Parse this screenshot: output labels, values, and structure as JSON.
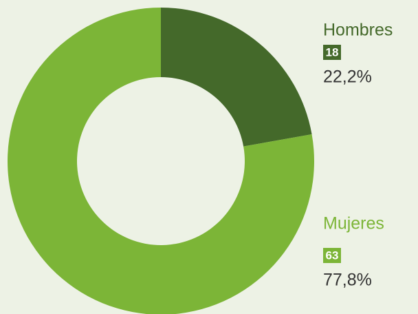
{
  "chart_data": {
    "type": "donut",
    "categories": [
      "Hombres",
      "Mujeres"
    ],
    "values": [
      18,
      63
    ],
    "percentages": [
      22.2,
      77.8
    ],
    "percentage_labels": [
      "22,2%",
      "77,8%"
    ],
    "colors": [
      "#44692a",
      "#7cb537"
    ]
  }
}
